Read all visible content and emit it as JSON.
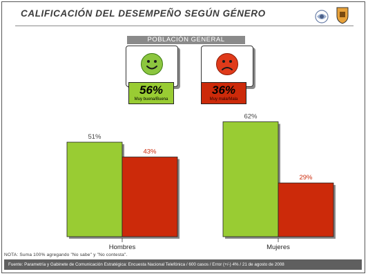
{
  "title": "CALIFICACIÓN DEL DESEMPEÑO SEGÚN GÉNERO",
  "logo1_text": "",
  "summary": {
    "header": "POBLACIÓN GENERAL",
    "good": {
      "value": "56%",
      "label": "Muy buena/Buena",
      "icon": "smiley-happy-icon",
      "color": "#99cc33"
    },
    "bad": {
      "value": "36%",
      "label": "Muy mala/Mala",
      "icon": "smiley-sad-icon",
      "color": "#cc2a0a"
    }
  },
  "chart_data": {
    "type": "bar",
    "categories": [
      "Hombres",
      "Mujeres"
    ],
    "series": [
      {
        "name": "Muy buena/Buena",
        "values": [
          51,
          62
        ],
        "color": "#99cc33",
        "label_color": "#444444"
      },
      {
        "name": "Muy mala/Mala",
        "values": [
          43,
          29
        ],
        "color": "#cc2a0a",
        "label_color": "#cc2a0a"
      }
    ],
    "data_labels": [
      [
        "51%",
        "62%"
      ],
      [
        "43%",
        "29%"
      ]
    ],
    "ylim": [
      0,
      70
    ],
    "title": "",
    "xlabel": "",
    "ylabel": ""
  },
  "note": "NOTA: Suma 100% agregando \"No sabe\" y \"No contesta\".",
  "footer": "Fuente: Parametría y Gabinete de Comunicación Estratégica: Encuesta Nacional Telefónica / 600 casos / Error (+/-) 4% / 21 de agosto de 2008"
}
